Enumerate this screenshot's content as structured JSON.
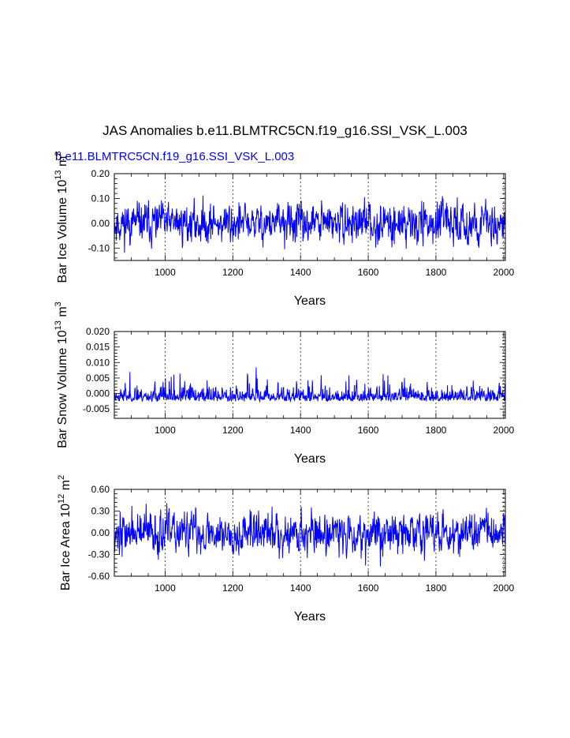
{
  "page": {
    "title": "JAS Anomalies b.e11.BLMTRC5CN.f19_g16.SSI_VSK_L.003",
    "case_label": "b.e11.BLMTRC5CN.f19_g16.SSI_VSK_L.003",
    "case_label_color": "#0000ff",
    "line_color": "#0000ff"
  },
  "chart_data": [
    {
      "type": "line",
      "xlabel": "Years",
      "ylabel": "Bar Ice Volume 10",
      "ylabel_exp": "13",
      "ylabel_unit": "m",
      "ylabel_unit_exp": "3",
      "xlim": [
        850,
        2005
      ],
      "ylim": [
        -0.15,
        0.2
      ],
      "xticks": [
        1000,
        1200,
        1400,
        1600,
        1800,
        2000
      ],
      "xtick_labels": [
        "1000",
        "1200",
        "1400",
        "1600",
        "1800",
        "2000"
      ],
      "yticks": [
        -0.1,
        0.0,
        0.1,
        0.2
      ],
      "ytick_labels": [
        "-0.10",
        "0.00",
        "0.10",
        "0.20"
      ],
      "vgrid": [
        1000,
        1200,
        1400,
        1600,
        1800,
        2000
      ],
      "series_params": {
        "seed": 11,
        "sd": 0.038,
        "min": -0.12,
        "max": 0.165,
        "ac": 0.35
      }
    },
    {
      "type": "line",
      "xlabel": "Years",
      "ylabel": "Bar Snow Volume 10",
      "ylabel_exp": "13",
      "ylabel_unit": "m",
      "ylabel_unit_exp": "3",
      "xlim": [
        850,
        2005
      ],
      "ylim": [
        -0.008,
        0.02
      ],
      "xticks": [
        1000,
        1200,
        1400,
        1600,
        1800,
        2000
      ],
      "xtick_labels": [
        "1000",
        "1200",
        "1400",
        "1600",
        "1800",
        "2000"
      ],
      "yticks": [
        -0.005,
        0.0,
        0.005,
        0.01,
        0.015,
        0.02
      ],
      "ytick_labels": [
        "-0.005",
        "0.000",
        "0.005",
        "0.010",
        "0.015",
        "0.020"
      ],
      "vgrid": [
        1000,
        1200,
        1400,
        1600,
        1800,
        2000
      ],
      "series_params": {
        "seed": 23,
        "sd": 0.0022,
        "min": -0.0035,
        "max": 0.0163,
        "ac": 0.2,
        "skew": true
      }
    },
    {
      "type": "line",
      "xlabel": "Years",
      "ylabel": "Bar Ice Area 10",
      "ylabel_exp": "12",
      "ylabel_unit": "m",
      "ylabel_unit_exp": "2",
      "xlim": [
        850,
        2005
      ],
      "ylim": [
        -0.6,
        0.6
      ],
      "xticks": [
        1000,
        1200,
        1400,
        1600,
        1800,
        2000
      ],
      "xtick_labels": [
        "1000",
        "1200",
        "1400",
        "1600",
        "1800",
        "2000"
      ],
      "yticks": [
        -0.6,
        -0.3,
        0.0,
        0.3,
        0.6
      ],
      "ytick_labels": [
        "-0.60",
        "-0.30",
        "0.00",
        "0.30",
        "0.60"
      ],
      "vgrid": [
        1000,
        1200,
        1400,
        1600,
        1800,
        2000
      ],
      "series_params": {
        "seed": 37,
        "sd": 0.14,
        "min": -0.58,
        "max": 0.55,
        "ac": 0.3
      }
    }
  ]
}
